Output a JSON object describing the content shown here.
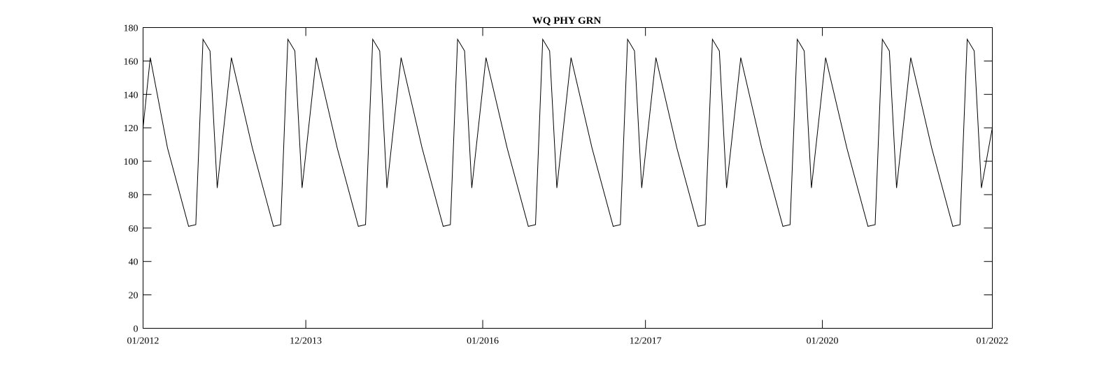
{
  "chart_data": {
    "type": "line",
    "title": "WQ PHY GRN",
    "xlabel": "",
    "ylabel": "",
    "ylim": [
      0,
      180
    ],
    "yticks": [
      0,
      20,
      40,
      60,
      80,
      100,
      120,
      140,
      160,
      180
    ],
    "xlim": [
      "2012-01-01",
      "2022-01-01"
    ],
    "xticks": [
      {
        "date": "2012-01-01",
        "label": "01/2012"
      },
      {
        "date": "2013-12-01",
        "label": "12/2013"
      },
      {
        "date": "2016-01-01",
        "label": "01/2016"
      },
      {
        "date": "2017-12-01",
        "label": "12/2017"
      },
      {
        "date": "2020-01-01",
        "label": "01/2020"
      },
      {
        "date": "2022-01-01",
        "label": "01/2022"
      }
    ],
    "grid": false,
    "legend": "none",
    "line_color": "#000000",
    "series": [
      {
        "x": [
          "2012-01-01",
          "2012-02-01",
          "2012-04-15",
          "2012-07-15",
          "2012-08-15",
          "2012-09-15",
          "2012-10-15",
          "2012-11-15",
          "2013-01-15",
          "2013-04-15",
          "2013-07-15",
          "2013-08-15",
          "2013-09-15",
          "2013-10-15",
          "2013-11-15",
          "2014-01-15",
          "2014-04-15",
          "2014-07-15",
          "2014-08-15",
          "2014-09-15",
          "2014-10-15",
          "2014-11-15",
          "2015-01-15",
          "2015-04-15",
          "2015-07-15",
          "2015-08-15",
          "2015-09-15",
          "2015-10-15",
          "2015-11-15",
          "2016-01-15",
          "2016-04-15",
          "2016-07-15",
          "2016-08-15",
          "2016-09-15",
          "2016-10-15",
          "2016-11-15",
          "2017-01-15",
          "2017-04-15",
          "2017-07-15",
          "2017-08-15",
          "2017-09-15",
          "2017-10-15",
          "2017-11-15",
          "2018-01-15",
          "2018-04-15",
          "2018-07-15",
          "2018-08-15",
          "2018-09-15",
          "2018-10-15",
          "2018-11-15",
          "2019-01-15",
          "2019-04-15",
          "2019-07-15",
          "2019-08-15",
          "2019-09-15",
          "2019-10-15",
          "2019-11-15",
          "2020-01-15",
          "2020-04-15",
          "2020-07-15",
          "2020-08-15",
          "2020-09-15",
          "2020-10-15",
          "2020-11-15",
          "2021-01-15",
          "2021-04-15",
          "2021-07-15",
          "2021-08-15",
          "2021-09-15",
          "2021-10-15",
          "2021-11-15",
          "2022-01-01"
        ],
        "y": [
          120,
          162,
          108,
          61,
          62,
          173,
          166,
          84,
          162,
          108,
          61,
          62,
          173,
          166,
          84,
          162,
          108,
          61,
          62,
          173,
          166,
          84,
          162,
          108,
          61,
          62,
          173,
          166,
          84,
          162,
          108,
          61,
          62,
          173,
          166,
          84,
          162,
          108,
          61,
          62,
          173,
          166,
          84,
          162,
          108,
          61,
          62,
          173,
          166,
          84,
          162,
          108,
          61,
          62,
          173,
          166,
          84,
          162,
          108,
          61,
          62,
          173,
          166,
          84,
          162,
          108,
          61,
          62,
          173,
          166,
          84,
          120
        ]
      }
    ]
  }
}
